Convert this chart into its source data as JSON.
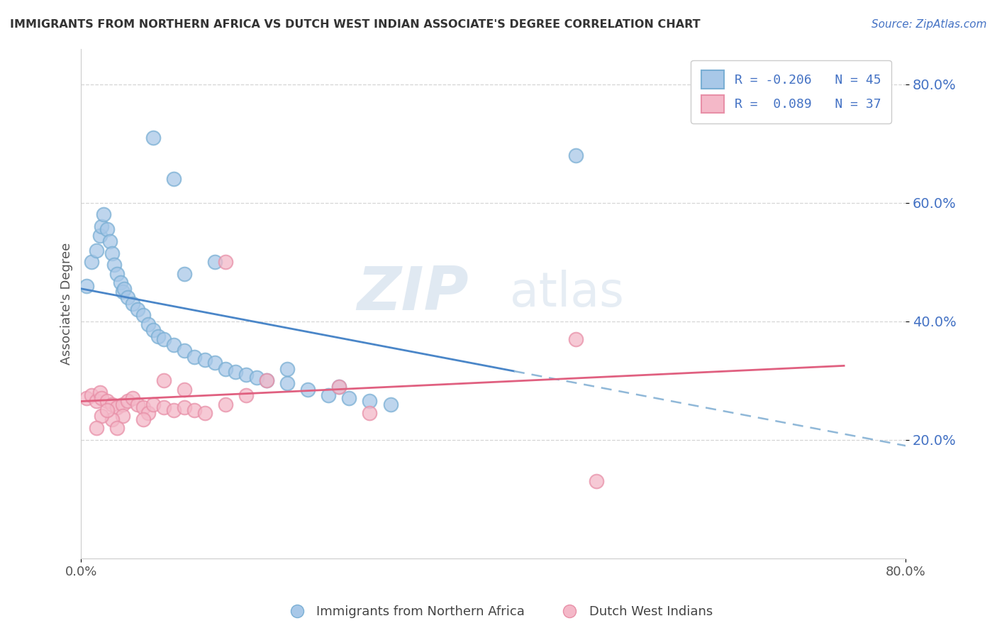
{
  "title": "IMMIGRANTS FROM NORTHERN AFRICA VS DUTCH WEST INDIAN ASSOCIATE'S DEGREE CORRELATION CHART",
  "source": "Source: ZipAtlas.com",
  "ylabel": "Associate's Degree",
  "xlim": [
    0.0,
    0.8
  ],
  "ylim": [
    0.0,
    0.86
  ],
  "ytick_positions": [
    0.2,
    0.4,
    0.6,
    0.8
  ],
  "ytick_labels": [
    "20.0%",
    "40.0%",
    "60.0%",
    "80.0%"
  ],
  "blue_color": "#a8c8e8",
  "blue_edge_color": "#7aafd4",
  "pink_color": "#f4b8c8",
  "pink_edge_color": "#e890a8",
  "blue_line_color": "#4a86c8",
  "pink_line_color": "#e06080",
  "blue_dash_color": "#90b8d8",
  "blue_label": "Immigrants from Northern Africa",
  "pink_label": "Dutch West Indians",
  "R_blue": -0.206,
  "N_blue": 45,
  "R_pink": 0.089,
  "N_pink": 37,
  "watermark_zip": "ZIP",
  "watermark_atlas": "atlas",
  "legend_R_blue": "R = -0.206",
  "legend_N_blue": "N = 45",
  "legend_R_pink": "R =  0.089",
  "legend_N_pink": "N = 37",
  "blue_scatter_x": [
    0.005,
    0.01,
    0.015,
    0.018,
    0.02,
    0.022,
    0.025,
    0.028,
    0.03,
    0.032,
    0.035,
    0.038,
    0.04,
    0.042,
    0.045,
    0.05,
    0.055,
    0.06,
    0.065,
    0.07,
    0.075,
    0.08,
    0.09,
    0.1,
    0.11,
    0.12,
    0.13,
    0.14,
    0.15,
    0.16,
    0.17,
    0.18,
    0.2,
    0.22,
    0.24,
    0.26,
    0.28,
    0.3,
    0.2,
    0.25,
    0.48,
    0.1,
    0.13,
    0.07,
    0.09
  ],
  "blue_scatter_y": [
    0.46,
    0.5,
    0.52,
    0.545,
    0.56,
    0.58,
    0.555,
    0.535,
    0.515,
    0.495,
    0.48,
    0.465,
    0.45,
    0.455,
    0.44,
    0.43,
    0.42,
    0.41,
    0.395,
    0.385,
    0.375,
    0.37,
    0.36,
    0.35,
    0.34,
    0.335,
    0.33,
    0.32,
    0.315,
    0.31,
    0.305,
    0.3,
    0.295,
    0.285,
    0.275,
    0.27,
    0.265,
    0.26,
    0.32,
    0.29,
    0.68,
    0.48,
    0.5,
    0.71,
    0.64
  ],
  "pink_scatter_x": [
    0.005,
    0.01,
    0.015,
    0.018,
    0.02,
    0.025,
    0.03,
    0.035,
    0.04,
    0.045,
    0.05,
    0.055,
    0.06,
    0.065,
    0.07,
    0.08,
    0.09,
    0.1,
    0.11,
    0.12,
    0.14,
    0.16,
    0.18,
    0.25,
    0.48,
    0.28,
    0.14,
    0.1,
    0.08,
    0.06,
    0.04,
    0.03,
    0.02,
    0.015,
    0.025,
    0.035,
    0.5
  ],
  "pink_scatter_y": [
    0.27,
    0.275,
    0.265,
    0.28,
    0.27,
    0.265,
    0.26,
    0.255,
    0.26,
    0.265,
    0.27,
    0.26,
    0.255,
    0.245,
    0.26,
    0.255,
    0.25,
    0.255,
    0.25,
    0.245,
    0.26,
    0.275,
    0.3,
    0.29,
    0.37,
    0.245,
    0.5,
    0.285,
    0.3,
    0.235,
    0.24,
    0.235,
    0.24,
    0.22,
    0.25,
    0.22,
    0.13
  ],
  "blue_trend_x_start": 0.0,
  "blue_trend_x_solid_end": 0.42,
  "blue_trend_x_end": 0.8,
  "blue_trend_y_start": 0.455,
  "blue_trend_y_end": 0.19,
  "pink_trend_x_start": 0.0,
  "pink_trend_x_end": 0.74,
  "pink_trend_y_start": 0.265,
  "pink_trend_y_end": 0.325,
  "background_color": "#ffffff",
  "grid_color": "#cccccc",
  "ytick_color": "#4472c4",
  "title_color": "#333333",
  "source_color": "#4472c4"
}
